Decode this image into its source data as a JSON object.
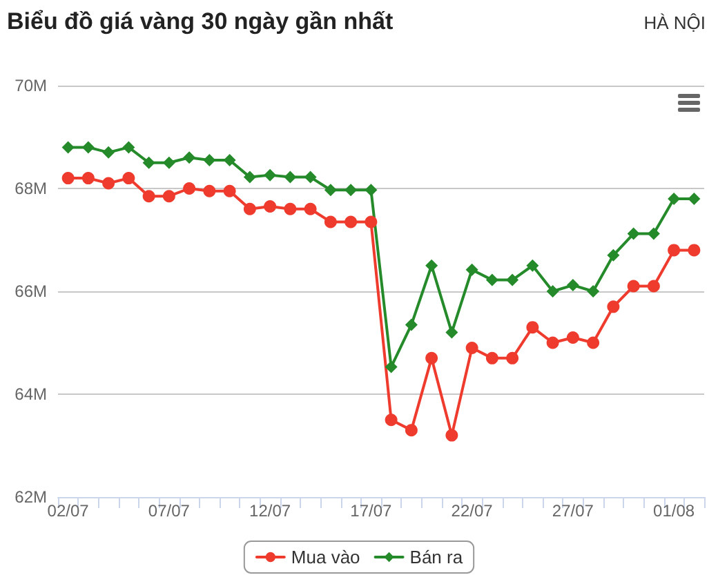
{
  "chart_data": {
    "type": "line",
    "title": "Biểu đồ giá vàng 30 ngày gần nhất",
    "subtitle": "HÀ NỘI",
    "categories": [
      "02/07",
      null,
      null,
      null,
      null,
      "07/07",
      null,
      null,
      null,
      null,
      "12/07",
      null,
      null,
      null,
      null,
      "17/07",
      null,
      null,
      null,
      null,
      "22/07",
      null,
      null,
      null,
      null,
      "27/07",
      null,
      null,
      null,
      null,
      "01/08",
      null
    ],
    "series": [
      {
        "name": "Mua vào",
        "color": "#ef3b2d",
        "marker": "circle",
        "values": [
          68200000,
          68200000,
          68100000,
          68200000,
          67850000,
          67850000,
          68000000,
          67950000,
          67950000,
          67600000,
          67650000,
          67600000,
          67600000,
          67350000,
          67350000,
          67350000,
          63500000,
          63300000,
          64700000,
          63200000,
          64900000,
          64700000,
          64700000,
          65300000,
          65000000,
          65100000,
          65000000,
          65700000,
          66100000,
          66100000,
          66800000,
          66800000
        ]
      },
      {
        "name": "Bán ra",
        "color": "#248a2a",
        "marker": "diamond",
        "values": [
          68800000,
          68800000,
          68700000,
          68800000,
          68500000,
          68500000,
          68600000,
          68550000,
          68550000,
          68220000,
          68260000,
          68220000,
          68220000,
          67970000,
          67970000,
          67970000,
          64530000,
          65350000,
          66500000,
          65200000,
          66420000,
          66220000,
          66220000,
          66500000,
          66000000,
          66120000,
          66000000,
          66700000,
          67120000,
          67120000,
          67800000,
          67800000
        ]
      }
    ],
    "ylim": [
      62000000,
      70000000
    ],
    "yticks": [
      {
        "value": 62000000,
        "label": "62M"
      },
      {
        "value": 64000000,
        "label": "64M"
      },
      {
        "value": 66000000,
        "label": "66M"
      },
      {
        "value": 68000000,
        "label": "68M"
      },
      {
        "value": 70000000,
        "label": "70M"
      }
    ],
    "grid": "y",
    "legend": "bottom"
  }
}
